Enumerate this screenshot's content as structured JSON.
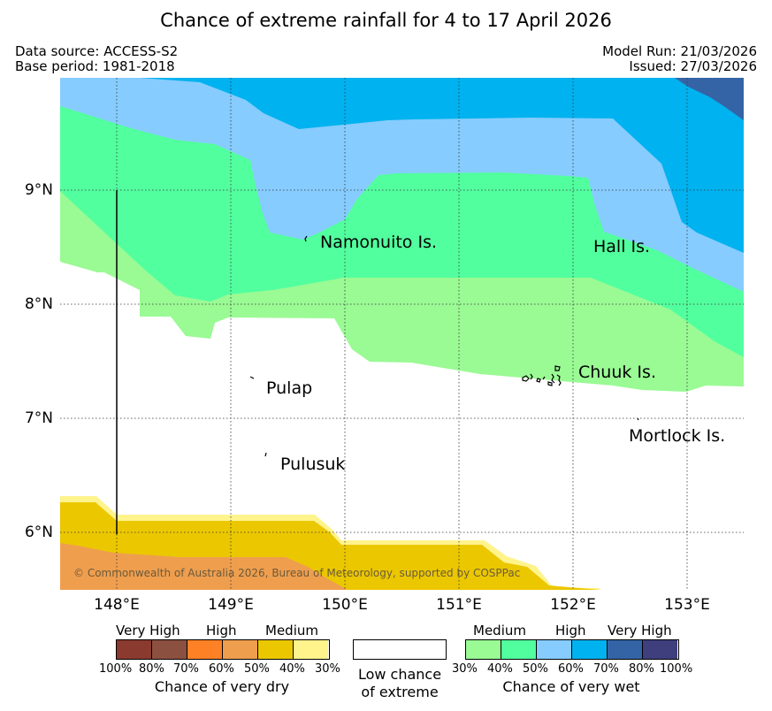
{
  "title": "Chance of extreme rainfall for 4 to 17 April 2026",
  "data_source": "Data source: ACCESS-S2",
  "base_period": "Base period: 1981-2018",
  "model_run": "Model Run: 21/03/2026",
  "issued": "Issued: 27/03/2026",
  "map": {
    "lat_labels": [
      "9°N",
      "8°N",
      "7°N",
      "6°N"
    ],
    "lon_labels": [
      "148°E",
      "149°E",
      "150°E",
      "151°E",
      "152°E",
      "153°E"
    ],
    "islands": [
      "Namonuito Is.",
      "Hall Is.",
      "Pulap",
      "Chuuk Is.",
      "Mortlock Is.",
      "Pulusuk"
    ],
    "copyright": "© Commonwealth of Australia 2026, Bureau of Meteorology, supported by COSPPac"
  },
  "legend": {
    "dry": {
      "groups": [
        "Very High",
        "High",
        "Medium"
      ],
      "percents": [
        "100%",
        "80%",
        "70%",
        "60%",
        "50%",
        "40%",
        "30%"
      ],
      "colors": [
        "#8b3a2f",
        "#8c5040",
        "#ff8126",
        "#ef9e4e",
        "#ebc700",
        "#fff38c"
      ],
      "caption": "Chance of very dry"
    },
    "neutral": {
      "caption_line1": "Low chance",
      "caption_line2": "of extreme"
    },
    "wet": {
      "groups": [
        "Medium",
        "High",
        "Very High"
      ],
      "percents": [
        "30%",
        "40%",
        "50%",
        "60%",
        "70%",
        "80%",
        "100%"
      ],
      "colors": [
        "#9afa94",
        "#52ff9e",
        "#86ccff",
        "#00b2ef",
        "#3464a6",
        "#3e3f7c"
      ],
      "caption": "Chance of very wet"
    }
  }
}
